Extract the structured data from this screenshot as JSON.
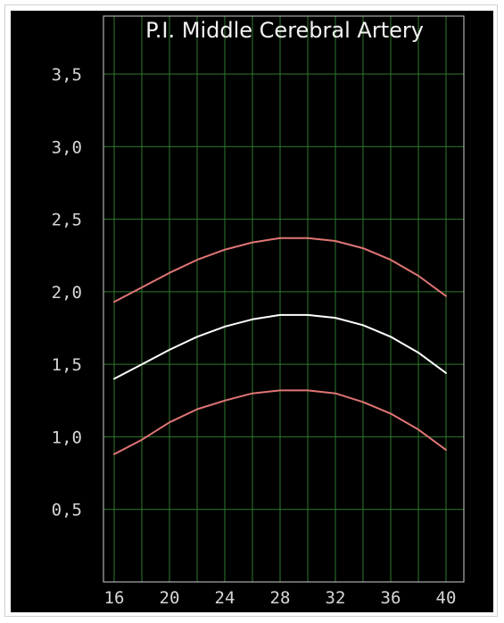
{
  "chart_data": {
    "type": "line",
    "title": "P.I. Middle Cerebral Artery",
    "xlabel": "",
    "ylabel": "",
    "xlim": [
      16,
      40
    ],
    "ylim": [
      0,
      3.9
    ],
    "x_ticks": [
      16,
      20,
      24,
      28,
      32,
      36,
      40
    ],
    "x_tick_labels": [
      "16",
      "20",
      "24",
      "28",
      "32",
      "36",
      "40"
    ],
    "y_ticks": [
      0.5,
      1.0,
      1.5,
      2.0,
      2.5,
      3.0,
      3.5
    ],
    "y_tick_labels": [
      "0,5",
      "1,0",
      "1,5",
      "2,0",
      "2,5",
      "3,0",
      "3,5"
    ],
    "grid": true,
    "legend": "none",
    "colors": {
      "background": "#000000",
      "grid": "#2f7a2f",
      "axis": "#cfcfcf",
      "upper": "#e07575",
      "median": "#ffffff",
      "lower": "#e07575"
    },
    "x": [
      16,
      18,
      20,
      22,
      24,
      26,
      28,
      30,
      32,
      34,
      36,
      38,
      40
    ],
    "series": [
      {
        "key": "upper",
        "values": [
          1.93,
          2.03,
          2.13,
          2.22,
          2.29,
          2.34,
          2.37,
          2.37,
          2.35,
          2.3,
          2.22,
          2.11,
          1.97
        ]
      },
      {
        "key": "median",
        "values": [
          1.4,
          1.5,
          1.6,
          1.69,
          1.76,
          1.81,
          1.84,
          1.84,
          1.82,
          1.77,
          1.69,
          1.58,
          1.44
        ]
      },
      {
        "key": "lower",
        "values": [
          0.88,
          0.98,
          1.1,
          1.19,
          1.25,
          1.3,
          1.32,
          1.32,
          1.3,
          1.24,
          1.16,
          1.05,
          0.91
        ]
      }
    ]
  }
}
